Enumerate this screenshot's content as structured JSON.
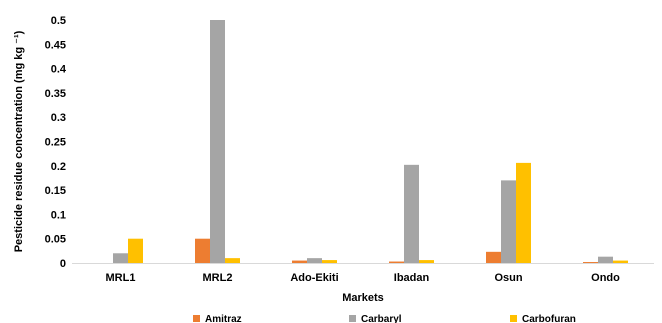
{
  "chart_data": {
    "type": "bar",
    "title": "",
    "xlabel": "Markets",
    "ylabel": "Pesticide residue concentration  (mg kg ⁻¹)",
    "categories": [
      "MRL1",
      "MRL2",
      "Ado-Ekiti",
      "Ibadan",
      "Osun",
      "Ondo"
    ],
    "y_ticks": [
      "0",
      "0.05",
      "0.1",
      "0.15",
      "0.2",
      "0.25",
      "0.3",
      "0.35",
      "0.4",
      "0.45",
      "0.5"
    ],
    "ylim": [
      0,
      0.5
    ],
    "grid": false,
    "legend_position": "bottom",
    "series": [
      {
        "name": "Amitraz",
        "color": "#ED7D31",
        "values": [
          0,
          0.05,
          0.005,
          0.003,
          0.023,
          0.002
        ]
      },
      {
        "name": "Carbaryl",
        "color": "#A5A5A5",
        "values": [
          0.02,
          0.5,
          0.01,
          0.202,
          0.17,
          0.013
        ]
      },
      {
        "name": "Carbofuran",
        "color": "#FFC000",
        "values": [
          0.05,
          0.01,
          0.006,
          0.006,
          0.206,
          0.005
        ]
      }
    ]
  }
}
